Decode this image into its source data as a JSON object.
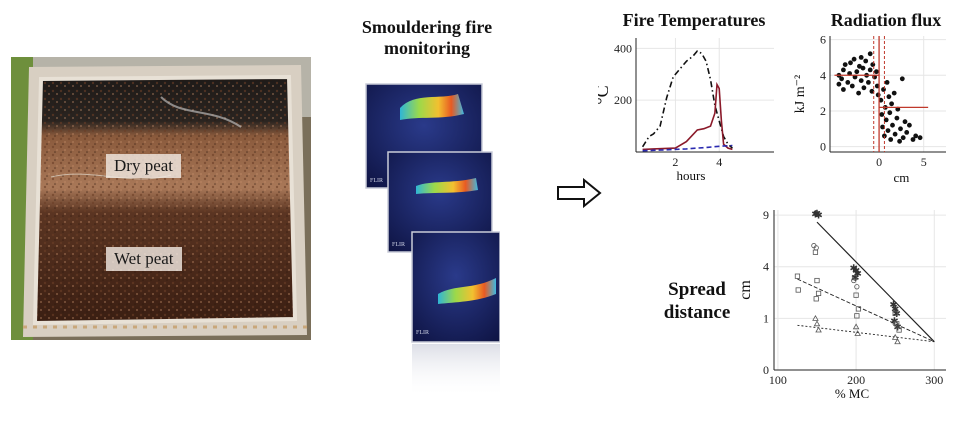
{
  "photo": {
    "dry_label": "Dry peat",
    "wet_label": "Wet peat"
  },
  "monitoring": {
    "title_line1": "Smouldering fire",
    "title_line2": "monitoring",
    "camera_brand": "FLIR"
  },
  "arrow": {
    "icon": "right-arrow-icon"
  },
  "chart_data": [
    {
      "id": "fire-temperatures",
      "type": "line",
      "title": "Fire Temperatures",
      "xlabel": "hours",
      "ylabel": "°C",
      "x_ticks": [
        2,
        4
      ],
      "y_ticks": [
        200,
        400
      ],
      "xlim": [
        0.2,
        6.5
      ],
      "ylim": [
        0,
        440
      ],
      "grid": true,
      "series": [
        {
          "style": "dash-dot",
          "color": "#111111",
          "x": [
            0.5,
            0.8,
            1.0,
            1.3,
            1.6,
            1.9,
            2.2,
            2.5,
            2.8,
            3.0,
            3.2,
            3.4,
            3.6,
            3.8,
            4.0,
            4.2,
            4.4,
            4.6
          ],
          "y": [
            20,
            60,
            70,
            100,
            210,
            290,
            320,
            350,
            370,
            390,
            380,
            350,
            280,
            180,
            120,
            60,
            30,
            15
          ]
        },
        {
          "style": "solid",
          "color": "#8b1a2a",
          "x": [
            0.5,
            1.0,
            2.0,
            2.5,
            3.0,
            3.3,
            3.6,
            3.8,
            3.9,
            4.0,
            4.1,
            4.2,
            4.4,
            4.6
          ],
          "y": [
            10,
            12,
            15,
            40,
            85,
            90,
            100,
            150,
            260,
            245,
            120,
            30,
            15,
            10
          ]
        },
        {
          "style": "dashed",
          "color": "#2a2ab0",
          "x": [
            0.5,
            1.5,
            2.5,
            3.5,
            4.0,
            4.6
          ],
          "y": [
            5,
            8,
            12,
            18,
            22,
            25
          ]
        }
      ]
    },
    {
      "id": "radiation-flux",
      "type": "scatter",
      "title": "Radiation flux",
      "xlabel": "cm",
      "ylabel": "kJ m⁻²",
      "x_ticks": [
        0,
        5
      ],
      "y_ticks": [
        0,
        2,
        4,
        6
      ],
      "xlim": [
        -5.5,
        7.5
      ],
      "ylim": [
        -0.3,
        6.2
      ],
      "grid": true,
      "points": [
        [
          -4.5,
          3.5
        ],
        [
          -4.5,
          4.0
        ],
        [
          -4.2,
          3.8
        ],
        [
          -4.0,
          3.2
        ],
        [
          -4.0,
          4.3
        ],
        [
          -3.8,
          4.6
        ],
        [
          -3.5,
          3.6
        ],
        [
          -3.3,
          4.1
        ],
        [
          -3.2,
          4.7
        ],
        [
          -3.0,
          3.4
        ],
        [
          -2.8,
          4.9
        ],
        [
          -2.7,
          3.9
        ],
        [
          -2.5,
          4.2
        ],
        [
          -2.3,
          3.0
        ],
        [
          -2.2,
          4.5
        ],
        [
          -2.0,
          5.0
        ],
        [
          -2.0,
          3.7
        ],
        [
          -1.8,
          4.4
        ],
        [
          -1.7,
          3.3
        ],
        [
          -1.5,
          4.8
        ],
        [
          -1.4,
          4.0
        ],
        [
          -1.2,
          3.6
        ],
        [
          -1.0,
          5.2
        ],
        [
          -1.0,
          4.3
        ],
        [
          -0.8,
          3.1
        ],
        [
          -0.7,
          4.6
        ],
        [
          -0.5,
          3.9
        ],
        [
          -0.3,
          4.2
        ],
        [
          -0.2,
          3.4
        ],
        [
          -0.1,
          2.9
        ],
        [
          0.2,
          2.6
        ],
        [
          0.3,
          1.8
        ],
        [
          0.4,
          1.1
        ],
        [
          0.5,
          3.2
        ],
        [
          0.6,
          0.6
        ],
        [
          0.7,
          2.2
        ],
        [
          0.8,
          1.5
        ],
        [
          0.9,
          3.6
        ],
        [
          1.0,
          0.9
        ],
        [
          1.1,
          2.8
        ],
        [
          1.2,
          1.9
        ],
        [
          1.3,
          0.4
        ],
        [
          1.4,
          2.4
        ],
        [
          1.5,
          1.2
        ],
        [
          1.7,
          3.0
        ],
        [
          1.8,
          0.7
        ],
        [
          2.0,
          1.6
        ],
        [
          2.1,
          2.1
        ],
        [
          2.3,
          0.3
        ],
        [
          2.4,
          1.0
        ],
        [
          2.6,
          3.8
        ],
        [
          2.7,
          0.5
        ],
        [
          2.9,
          1.4
        ],
        [
          3.1,
          0.8
        ],
        [
          3.4,
          1.2
        ],
        [
          3.8,
          0.4
        ],
        [
          4.1,
          0.6
        ],
        [
          4.6,
          0.5
        ]
      ],
      "reference_lines": {
        "vertical_solid_x": 0,
        "vertical_dashed_x": [
          -0.6,
          0.6
        ],
        "mean_left": {
          "x": [
            -5.0,
            0.0
          ],
          "y": 4.0
        },
        "mean_right": {
          "x": [
            0.0,
            5.5
          ],
          "y": 2.2
        }
      }
    },
    {
      "id": "spread-distance",
      "type": "scatter",
      "title": "",
      "xlabel": "% MC",
      "ylabel": "cm",
      "x_ticks": [
        100,
        200,
        300
      ],
      "y_ticks": [
        0,
        1,
        4,
        9
      ],
      "xlim": [
        95,
        315
      ],
      "ylim": [
        0,
        9.6
      ],
      "y_scale": "sqrt",
      "grid": true,
      "series": [
        {
          "marker": "star",
          "points": [
            [
              148,
              9.1
            ],
            [
              150,
              9.2
            ],
            [
              152,
              9.0
            ],
            [
              197,
              3.9
            ],
            [
              200,
              3.7
            ],
            [
              202,
              3.5
            ],
            [
              199,
              3.2
            ],
            [
              248,
              1.6
            ],
            [
              250,
              1.4
            ],
            [
              252,
              1.2
            ],
            [
              249,
              0.9
            ],
            [
              253,
              0.7
            ]
          ],
          "fit": [
            [
              150,
              8.2
            ],
            [
              300,
              0.3
            ]
          ]
        },
        {
          "marker": "square",
          "points": [
            [
              125,
              3.3
            ],
            [
              126,
              2.4
            ],
            [
              148,
              5.2
            ],
            [
              150,
              3.0
            ],
            [
              152,
              2.2
            ],
            [
              149,
              1.9
            ],
            [
              198,
              3.2
            ],
            [
              200,
              2.1
            ],
            [
              203,
              1.4
            ],
            [
              201,
              1.1
            ],
            [
              250,
              1.2
            ],
            [
              252,
              0.8
            ],
            [
              255,
              0.6
            ]
          ],
          "fit": [
            [
              125,
              3.1
            ],
            [
              300,
              0.3
            ]
          ]
        },
        {
          "marker": "circle",
          "points": [
            [
              146,
              5.8
            ],
            [
              149,
              5.6
            ],
            [
              197,
              3.0
            ],
            [
              201,
              2.6
            ],
            [
              250,
              0.8
            ]
          ],
          "fit": null
        },
        {
          "marker": "triangle",
          "points": [
            [
              148,
              1.0
            ],
            [
              150,
              0.8
            ],
            [
              152,
              0.6
            ],
            [
              200,
              0.7
            ],
            [
              202,
              0.5
            ],
            [
              250,
              0.4
            ],
            [
              253,
              0.3
            ]
          ],
          "fit": [
            [
              125,
              0.75
            ],
            [
              300,
              0.3
            ]
          ]
        }
      ]
    }
  ],
  "spread_label": {
    "line1": "Spread",
    "line2": "distance"
  }
}
